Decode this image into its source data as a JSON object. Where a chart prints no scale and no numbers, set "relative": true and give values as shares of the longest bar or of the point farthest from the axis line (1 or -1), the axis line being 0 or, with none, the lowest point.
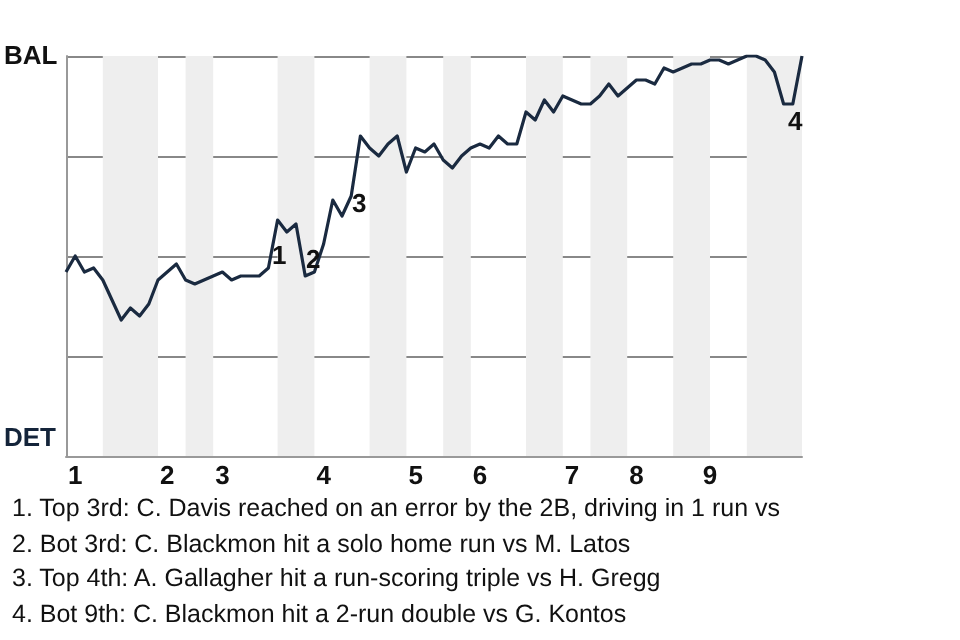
{
  "chart_data": {
    "type": "line",
    "categories": [
      null,
      "1",
      null,
      null,
      null,
      null,
      null,
      null,
      null,
      null,
      null,
      "2",
      null,
      null,
      null,
      null,
      null,
      "3",
      null,
      null,
      null,
      null,
      null,
      null,
      null,
      null,
      null,
      null,
      "4",
      null,
      null,
      null,
      null,
      null,
      null,
      null,
      null,
      null,
      "5",
      null,
      null,
      null,
      null,
      null,
      null,
      "6",
      null,
      null,
      null,
      null,
      null,
      null,
      null,
      null,
      null,
      "7",
      null,
      null,
      null,
      null,
      null,
      null,
      "8",
      null,
      null,
      null,
      null,
      null,
      null,
      null,
      "9",
      null,
      null,
      null,
      null,
      null,
      null,
      null,
      null,
      null,
      null
    ],
    "relative": true,
    "series": [
      {
        "color": "#1a2a40",
        "values": [
          0.46,
          0.5,
          0.46,
          0.47,
          0.44,
          0.39,
          0.34,
          0.37,
          0.35,
          0.38,
          0.44,
          0.46,
          0.48,
          0.44,
          0.43,
          0.44,
          0.45,
          0.46,
          0.44,
          0.45,
          0.45,
          0.45,
          0.47,
          0.59,
          0.56,
          0.58,
          0.45,
          0.46,
          0.53,
          0.64,
          0.6,
          0.65,
          0.8,
          0.77,
          0.75,
          0.78,
          0.8,
          0.71,
          0.77,
          0.76,
          0.78,
          0.74,
          0.72,
          0.75,
          0.77,
          0.78,
          0.77,
          0.8,
          0.78,
          0.78,
          0.86,
          0.84,
          0.89,
          0.86,
          0.9,
          0.89,
          0.88,
          0.88,
          0.9,
          0.93,
          0.9,
          0.92,
          0.94,
          0.94,
          0.93,
          0.97,
          0.96,
          0.97,
          0.98,
          0.98,
          0.99,
          0.99,
          0.98,
          0.99,
          1,
          1,
          0.99,
          0.96,
          0.88,
          0.88,
          1
        ]
      }
    ],
    "grid": "y",
    "marker": "none",
    "annotations": [
      "BAL",
      "DET",
      "1",
      "2",
      "3",
      "4",
      "1. Top 3rd: C. Davis reached on an error by the 2B, driving in 1 run vs",
      "2. Bot 3rd: C. Blackmon hit a solo home run vs M. Latos",
      "3. Top 4th: A. Gallagher hit a run-scoring triple vs H. Gregg",
      "4. Bot 9th: C. Blackmon hit a 2-run double vs G. Kontos"
    ]
  }
}
